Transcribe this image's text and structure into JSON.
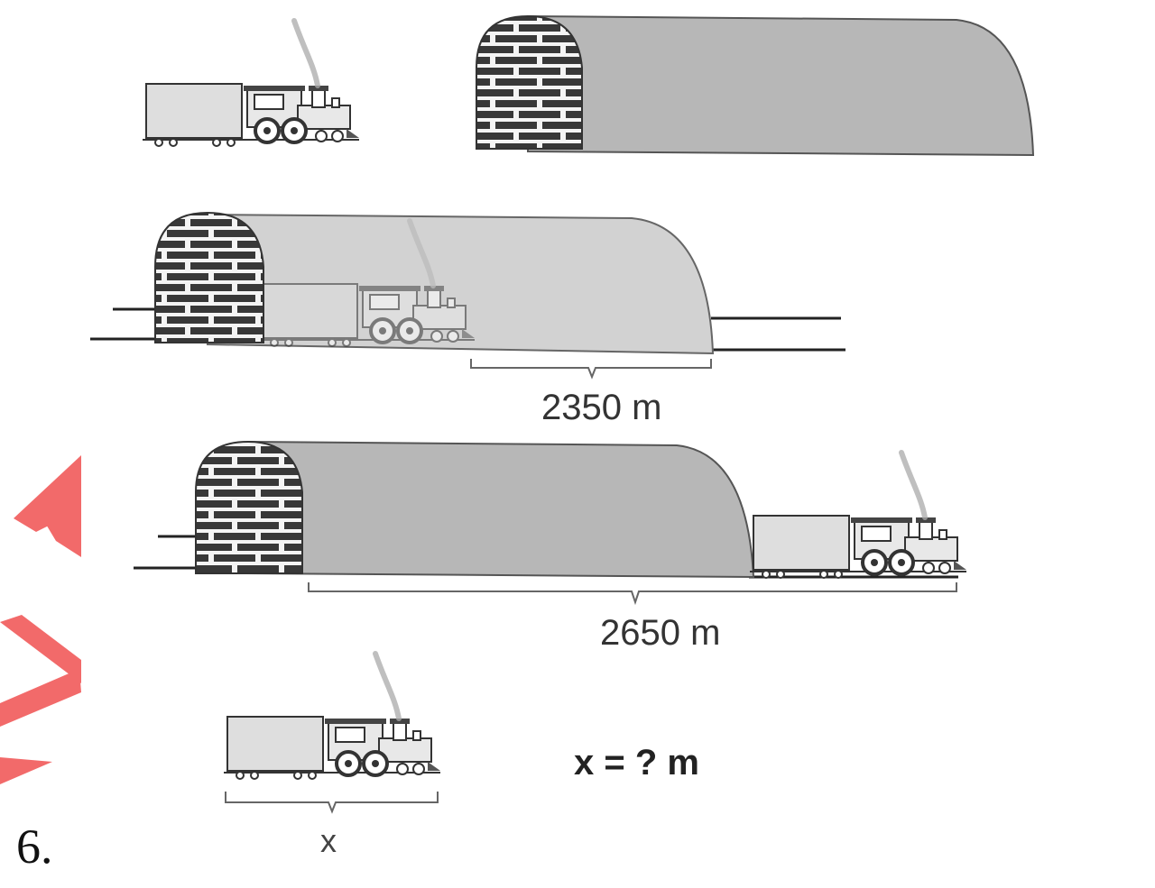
{
  "problem": {
    "number": "6.",
    "label_first": "2350 m",
    "label_second": "2650 m",
    "label_train": "x",
    "question": "x = ? m"
  },
  "colors": {
    "tunnel_gray": "#b7b7b7",
    "tunnel_light": "#d2d2d2",
    "brick": "#3a3a3a",
    "train_body": "#dedede",
    "outline": "#333333",
    "watermark": "#f26a6a"
  }
}
